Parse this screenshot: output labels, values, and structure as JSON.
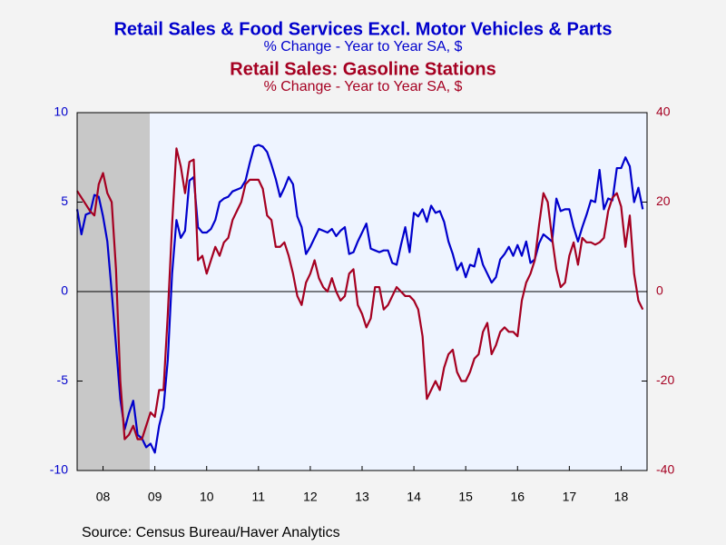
{
  "chart_data": {
    "type": "line",
    "title": "Retail Sales & Food Services Excl. Motor Vehicles & Parts",
    "subtitle": "% Change - Year to Year    SA, $",
    "title2": "Retail Sales: Gasoline Stations",
    "subtitle2": "% Change - Year to Year    SA, $",
    "source": "Source:  Census Bureau/Haver Analytics",
    "x": [
      2008,
      2008.083,
      2008.167,
      2008.25,
      2008.333,
      2008.417,
      2008.5,
      2008.583,
      2008.667,
      2008.75,
      2008.833,
      2008.917,
      2009,
      2009.083,
      2009.167,
      2009.25,
      2009.333,
      2009.417,
      2009.5,
      2009.583,
      2009.667,
      2009.75,
      2009.833,
      2009.917,
      2010,
      2010.083,
      2010.167,
      2010.25,
      2010.333,
      2010.417,
      2010.5,
      2010.583,
      2010.667,
      2010.75,
      2010.833,
      2010.917,
      2011,
      2011.083,
      2011.167,
      2011.25,
      2011.333,
      2011.417,
      2011.5,
      2011.583,
      2011.667,
      2011.75,
      2011.833,
      2011.917,
      2012,
      2012.083,
      2012.167,
      2012.25,
      2012.333,
      2012.417,
      2012.5,
      2012.583,
      2012.667,
      2012.75,
      2012.833,
      2012.917,
      2013,
      2013.083,
      2013.167,
      2013.25,
      2013.333,
      2013.417,
      2013.5,
      2013.583,
      2013.667,
      2013.75,
      2013.833,
      2013.917,
      2014,
      2014.083,
      2014.167,
      2014.25,
      2014.333,
      2014.417,
      2014.5,
      2014.583,
      2014.667,
      2014.75,
      2014.833,
      2014.917,
      2015,
      2015.083,
      2015.167,
      2015.25,
      2015.333,
      2015.417,
      2015.5,
      2015.583,
      2015.667,
      2015.75,
      2015.833,
      2015.917,
      2016,
      2016.083,
      2016.167,
      2016.25,
      2016.333,
      2016.417,
      2016.5,
      2016.583,
      2016.667,
      2016.75,
      2016.833,
      2016.917,
      2017,
      2017.083,
      2017.167,
      2017.25,
      2017.333,
      2017.417,
      2017.5,
      2017.583,
      2017.667,
      2017.75,
      2017.833,
      2017.917,
      2018,
      2018.083,
      2018.167,
      2018.25,
      2018.333,
      2018.417,
      2018.5,
      2018.583,
      2018.667,
      2018.75,
      2018.833,
      2018.917
    ],
    "series": [
      {
        "name": "Retail Sales & Food Services Excl. Motor Vehicles & Parts",
        "color": "#0000cc",
        "axis": "y",
        "values": [
          4.6,
          3.2,
          4.3,
          4.4,
          5.4,
          5.3,
          4.2,
          2.8,
          0,
          -3,
          -6,
          -7.7,
          -6.8,
          -6.1,
          -8.0,
          -8.2,
          -8.7,
          -8.5,
          -9.0,
          -7.5,
          -6.5,
          -3.8,
          1.0,
          4.0,
          3.0,
          3.4,
          6.2,
          6.4,
          3.6,
          3.3,
          3.3,
          3.5,
          4.0,
          5.0,
          5.2,
          5.3,
          5.6,
          5.7,
          5.8,
          6.2,
          7.2,
          8.1,
          8.2,
          8.1,
          7.8,
          7.1,
          6.3,
          5.3,
          5.8,
          6.4,
          6.0,
          4.2,
          3.6,
          2.1,
          2.5,
          3.0,
          3.5,
          3.4,
          3.3,
          3.5,
          3.1,
          3.4,
          3.6,
          2.1,
          2.2,
          2.8,
          3.3,
          3.8,
          2.4,
          2.3,
          2.2,
          2.3,
          2.3,
          1.6,
          1.5,
          2.6,
          3.6,
          2.2,
          4.4,
          4.2,
          4.6,
          3.9,
          4.8,
          4.4,
          4.5,
          3.9,
          2.8,
          2.1,
          1.2,
          1.6,
          0.8,
          1.5,
          1.4,
          2.4,
          1.5,
          1.0,
          0.5,
          0.8,
          1.8,
          2.1,
          2.5,
          2.0,
          2.6,
          2.0,
          2.8,
          1.6,
          1.8,
          2.7,
          3.2,
          3.0,
          2.8,
          5.2,
          4.5,
          4.6,
          4.6,
          3.6,
          2.8,
          3.6,
          4.3,
          5.1,
          5.0,
          6.8,
          4.6,
          5.2,
          5.1,
          6.9,
          6.9,
          7.5,
          7.0,
          5.0,
          5.8,
          4.6
        ]
      },
      {
        "name": "Retail Sales: Gasoline Stations",
        "color": "#a50021",
        "axis": "y2",
        "values": [
          22.5,
          21,
          19.5,
          18,
          17,
          24,
          26.5,
          22,
          20,
          5,
          -20,
          -33,
          -32,
          -30,
          -33,
          -33,
          -30,
          -27,
          -28,
          -22,
          -22,
          -5,
          15,
          32,
          28,
          22,
          29,
          29.5,
          7,
          8,
          4,
          7,
          10,
          8,
          11,
          12,
          16,
          18,
          20,
          24,
          25,
          25,
          25,
          23,
          17,
          16,
          10,
          10,
          11,
          8,
          4,
          -1,
          -3,
          2,
          4,
          7,
          3,
          1,
          0,
          3,
          0,
          -2,
          -1,
          4,
          5,
          -3,
          -5,
          -8,
          -6,
          1,
          1,
          -4,
          -3,
          -1,
          1,
          0,
          -1,
          -1,
          -2,
          -4,
          -10,
          -24,
          -22,
          -20,
          -22,
          -17,
          -14,
          -13,
          -18,
          -20,
          -20,
          -18,
          -15,
          -14,
          -9,
          -7,
          -14,
          -12,
          -9,
          -8,
          -9,
          -9,
          -10,
          -2,
          2,
          4,
          7,
          15,
          22,
          20,
          12,
          5,
          1,
          2,
          8,
          11,
          6,
          12,
          11,
          11,
          10.5,
          11,
          12,
          18,
          21,
          22,
          19,
          10,
          17,
          4,
          -2,
          -4
        ]
      }
    ],
    "xlim": [
      2008,
      2019
    ],
    "xticks": [
      {
        "value": 2008.5,
        "label": "08"
      },
      {
        "value": 2009.5,
        "label": "09"
      },
      {
        "value": 2010.5,
        "label": "10"
      },
      {
        "value": 2011.5,
        "label": "11"
      },
      {
        "value": 2012.5,
        "label": "12"
      },
      {
        "value": 2013.5,
        "label": "13"
      },
      {
        "value": 2014.5,
        "label": "14"
      },
      {
        "value": 2015.5,
        "label": "15"
      },
      {
        "value": 2016.5,
        "label": "16"
      },
      {
        "value": 2017.5,
        "label": "17"
      },
      {
        "value": 2018.5,
        "label": "18"
      }
    ],
    "ylim": [
      -10,
      10
    ],
    "yticks": [
      -10,
      -5,
      0,
      5,
      10
    ],
    "y2lim": [
      -40,
      40
    ],
    "y2ticks": [
      -40,
      -20,
      0,
      20,
      40
    ]
  }
}
